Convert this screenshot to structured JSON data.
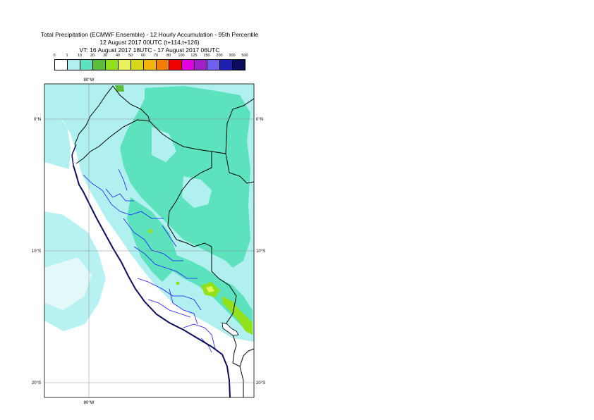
{
  "title": {
    "line1": "Total Precipitation (ECMWF Ensemble) - 12 Hourly Accumulation - 95th Percentile",
    "line2": "12 August 2017 00UTC (t+114,t+126)",
    "line3": "VT: 16 August 2017 18UTC - 17 August 2017 06UTC"
  },
  "colorbar": {
    "labels": [
      "0",
      "1",
      "10",
      "20",
      "30",
      "40",
      "50",
      "60",
      "70",
      "80",
      "100",
      "125",
      "150",
      "200",
      "300",
      "500"
    ],
    "colors": [
      "#ffffff",
      "#b0f0f0",
      "#5ce2bc",
      "#5cbd3a",
      "#92e01a",
      "#e8f35c",
      "#d8d81a",
      "#f0b40a",
      "#f37e0c",
      "#f00000",
      "#e000e0",
      "#a020c8",
      "#7060f0",
      "#2020b0",
      "#0c0c5c"
    ]
  },
  "map": {
    "lon_labels": [
      "80°W",
      "80°W"
    ],
    "lat_labels": [
      "0°N",
      "10°S",
      "20°S"
    ],
    "lat_labels_right": [
      "0°N",
      "10°S",
      "20°S"
    ]
  }
}
